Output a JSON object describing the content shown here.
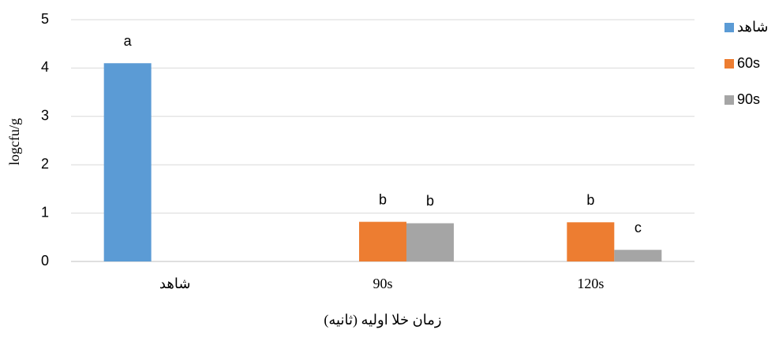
{
  "chart_data": {
    "type": "bar",
    "categories": [
      "شاهد",
      "90s",
      "120s"
    ],
    "series": [
      {
        "name": "شاهد",
        "color": "#5b9bd5",
        "values": [
          4.1,
          null,
          null
        ],
        "letters": [
          "a",
          null,
          null
        ]
      },
      {
        "name": "60s",
        "color": "#ed7d31",
        "values": [
          null,
          0.82,
          0.81
        ],
        "letters": [
          null,
          "b",
          "b"
        ]
      },
      {
        "name": "90s",
        "color": "#a5a5a5",
        "values": [
          null,
          0.79,
          0.24
        ],
        "letters": [
          null,
          "b",
          "c"
        ]
      }
    ],
    "ylabel": "logcfu/g",
    "xlabel": "زمان خلا اولیه (ثانیه)",
    "ylim": [
      0,
      5
    ],
    "yticks": [
      0,
      1,
      2,
      3,
      4,
      5
    ],
    "grid": true,
    "legend": "right"
  }
}
